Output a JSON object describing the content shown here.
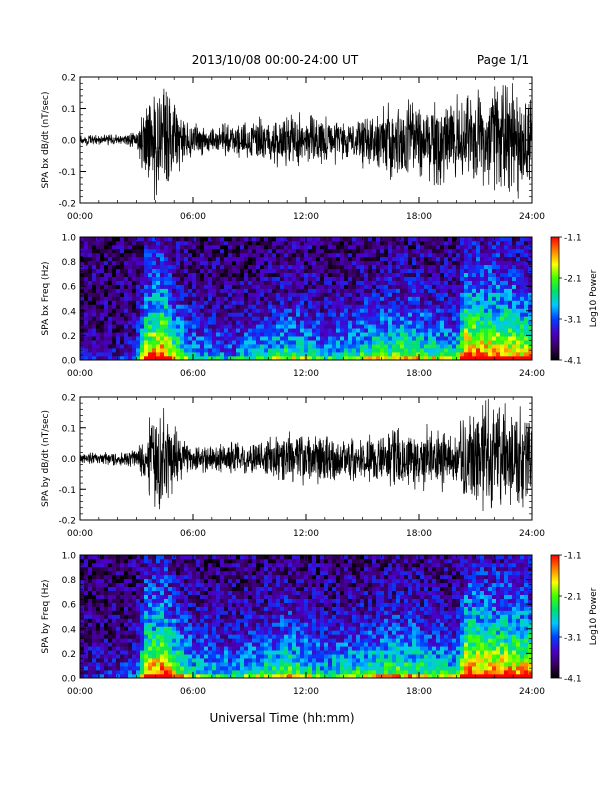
{
  "header": {
    "title": "2013/10/08  00:00-24:00 UT",
    "page": "Page 1/1"
  },
  "colors": {
    "background": "#ffffff",
    "axis": "#000000",
    "spectrogram_background": "#2a0a3a",
    "colormap": [
      "#000000",
      "#3a0060",
      "#4b00c8",
      "#0040ff",
      "#00c8ff",
      "#00e070",
      "#40ff00",
      "#ffff00",
      "#ff8000",
      "#ff0000"
    ]
  },
  "chart_data": [
    {
      "type": "line",
      "ylabel": "SPA bx dB/dt (nT/sec)",
      "xlabel": "",
      "xlim": [
        "00:00",
        "24:00"
      ],
      "ylim": [
        -0.2,
        0.2
      ],
      "yticks": [
        "0.2",
        "0.1",
        "0.0",
        "-0.1",
        "-0.2"
      ],
      "xticks": [
        "00:00",
        "06:00",
        "12:00",
        "18:00",
        "24:00"
      ],
      "series": [
        {
          "x_hours": [
            0,
            1,
            2,
            3,
            3.5,
            4,
            4.5,
            5,
            6,
            7,
            8,
            9,
            10,
            11,
            12,
            13,
            14,
            15,
            16,
            17,
            18,
            19,
            20,
            20.5,
            21,
            22,
            23,
            24
          ],
          "amplitude": [
            0.02,
            0.02,
            0.02,
            0.03,
            0.15,
            0.2,
            0.2,
            0.12,
            0.06,
            0.05,
            0.06,
            0.07,
            0.08,
            0.1,
            0.1,
            0.09,
            0.07,
            0.1,
            0.12,
            0.14,
            0.15,
            0.15,
            0.15,
            0.2,
            0.2,
            0.2,
            0.2,
            0.2
          ]
        }
      ]
    },
    {
      "type": "heatmap",
      "ylabel": "SPA bx Freq (Hz)",
      "xlim": [
        "00:00",
        "24:00"
      ],
      "ylim": [
        0.0,
        1.0
      ],
      "yticks": [
        "1.0",
        "0.8",
        "0.6",
        "0.4",
        "0.2",
        "0.0"
      ],
      "xticks": [
        "00:00",
        "06:00",
        "12:00",
        "18:00",
        "24:00"
      ],
      "colorbar": {
        "label": "Log10 Power",
        "ticks": [
          "-1.1",
          "-2.1",
          "-3.1",
          "-4.1"
        ],
        "range": [
          -4.1,
          -1.1
        ]
      },
      "activity": {
        "x_hours": [
          0,
          2,
          3,
          3.5,
          4,
          4.5,
          5,
          6,
          8,
          10,
          11,
          12,
          13,
          14,
          15,
          16,
          17,
          18,
          19,
          20,
          20.5,
          22,
          23,
          24
        ],
        "level": [
          0.1,
          0.1,
          0.2,
          0.85,
          0.9,
          0.95,
          0.7,
          0.4,
          0.3,
          0.45,
          0.55,
          0.5,
          0.4,
          0.45,
          0.55,
          0.6,
          0.65,
          0.6,
          0.55,
          0.5,
          0.95,
          0.9,
          0.85,
          0.8
        ]
      }
    },
    {
      "type": "line",
      "ylabel": "SPA by dB/dt (nT/sec)",
      "xlim": [
        "00:00",
        "24:00"
      ],
      "ylim": [
        -0.2,
        0.2
      ],
      "yticks": [
        "0.2",
        "0.1",
        "0.0",
        "-0.1",
        "-0.2"
      ],
      "xticks": [
        "00:00",
        "06:00",
        "12:00",
        "18:00",
        "24:00"
      ],
      "series": [
        {
          "x_hours": [
            0,
            1,
            2,
            3,
            3.5,
            4,
            4.5,
            5,
            6,
            7,
            8,
            9,
            10,
            11,
            12,
            13,
            14,
            15,
            16,
            17,
            18,
            19,
            20,
            20.5,
            21,
            22,
            23,
            24
          ],
          "amplitude": [
            0.02,
            0.02,
            0.03,
            0.03,
            0.1,
            0.2,
            0.2,
            0.12,
            0.05,
            0.05,
            0.06,
            0.06,
            0.08,
            0.09,
            0.1,
            0.1,
            0.07,
            0.08,
            0.09,
            0.12,
            0.13,
            0.12,
            0.1,
            0.2,
            0.2,
            0.2,
            0.2,
            0.2
          ]
        }
      ]
    },
    {
      "type": "heatmap",
      "ylabel": "SPA by Freq (Hz)",
      "xlim": [
        "00:00",
        "24:00"
      ],
      "ylim": [
        0.0,
        1.0
      ],
      "yticks": [
        "1.0",
        "0.8",
        "0.6",
        "0.4",
        "0.2",
        "0.0"
      ],
      "xticks": [
        "00:00",
        "06:00",
        "12:00",
        "18:00",
        "24:00"
      ],
      "colorbar": {
        "label": "Log10 Power",
        "ticks": [
          "-1.1",
          "-2.1",
          "-3.1",
          "-4.1"
        ],
        "range": [
          -4.1,
          -1.1
        ]
      },
      "activity": {
        "x_hours": [
          0,
          2,
          3,
          3.5,
          4,
          4.5,
          5,
          6,
          8,
          10,
          11,
          12,
          13,
          14,
          15,
          16,
          17,
          18,
          19,
          20,
          20.5,
          22,
          23,
          24
        ],
        "level": [
          0.15,
          0.15,
          0.25,
          0.9,
          0.9,
          0.95,
          0.75,
          0.5,
          0.4,
          0.55,
          0.65,
          0.55,
          0.45,
          0.5,
          0.55,
          0.6,
          0.65,
          0.6,
          0.55,
          0.5,
          0.95,
          0.9,
          0.9,
          0.85
        ]
      }
    }
  ],
  "footer": {
    "xlabel": "Universal Time (hh:mm)"
  }
}
